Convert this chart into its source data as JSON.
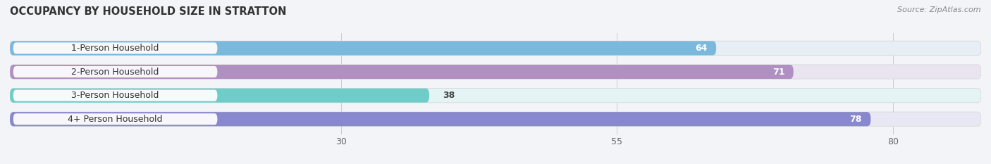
{
  "title": "OCCUPANCY BY HOUSEHOLD SIZE IN STRATTON",
  "source": "Source: ZipAtlas.com",
  "categories": [
    "1-Person Household",
    "2-Person Household",
    "3-Person Household",
    "4+ Person Household"
  ],
  "values": [
    64,
    71,
    38,
    78
  ],
  "bar_colors": [
    "#7ab8dc",
    "#b090c0",
    "#70ccc8",
    "#8888cc"
  ],
  "bar_bg_colors": [
    "#e8eef5",
    "#eae4f0",
    "#e4f4f4",
    "#e8e8f4"
  ],
  "label_colors": [
    "white",
    "white",
    "#444444",
    "white"
  ],
  "xticks": [
    30,
    55,
    80
  ],
  "xlim_max": 88,
  "title_fontsize": 10.5,
  "source_fontsize": 8,
  "value_fontsize": 9,
  "tick_fontsize": 9,
  "category_fontsize": 9
}
